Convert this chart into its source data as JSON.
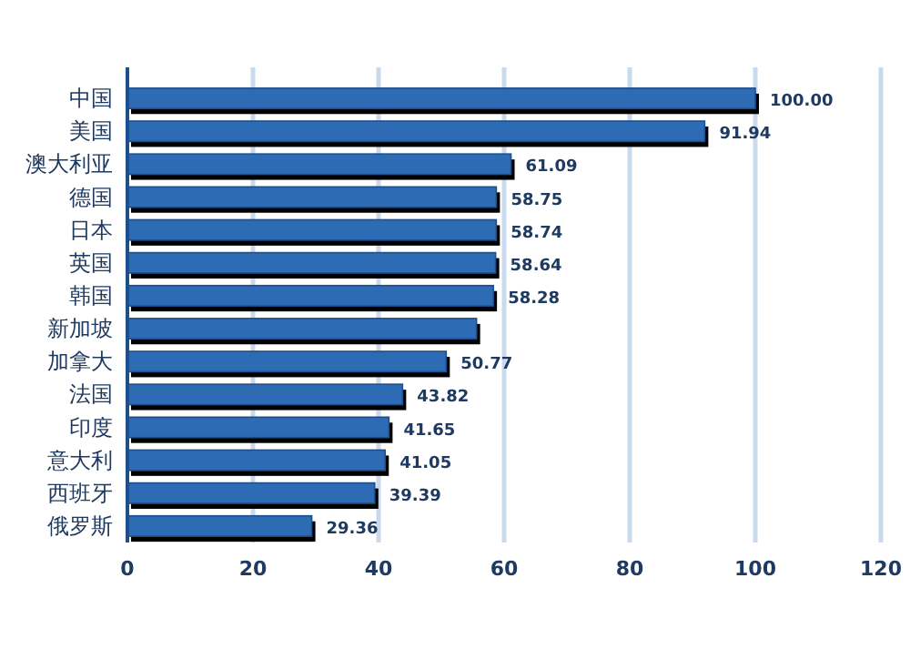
{
  "chart_data": {
    "type": "bar",
    "orientation": "horizontal",
    "categories": [
      "中国",
      "美国",
      "澳大利亚",
      "德国",
      "日本",
      "英国",
      "韩国",
      "新加坡",
      "加拿大",
      "法国",
      "印度",
      "意大利",
      "西班牙",
      "俄罗斯"
    ],
    "values": [
      100,
      91.94,
      61.09,
      58.75,
      58.74,
      58.64,
      58.28,
      55.6,
      50.77,
      43.82,
      41.65,
      41.05,
      39.39,
      29.36
    ],
    "value_labels": [
      "100.00",
      "91.94",
      "61.09",
      "58.75",
      "58.74",
      "58.64",
      "58.28",
      null,
      "50.77",
      "43.82",
      "41.65",
      "41.05",
      "39.39",
      "29.36"
    ],
    "color": "#2e6bb5",
    "xlim": [
      0,
      120
    ],
    "xticks": [
      0,
      20,
      40,
      60,
      80,
      100,
      120
    ],
    "grid": "x"
  }
}
